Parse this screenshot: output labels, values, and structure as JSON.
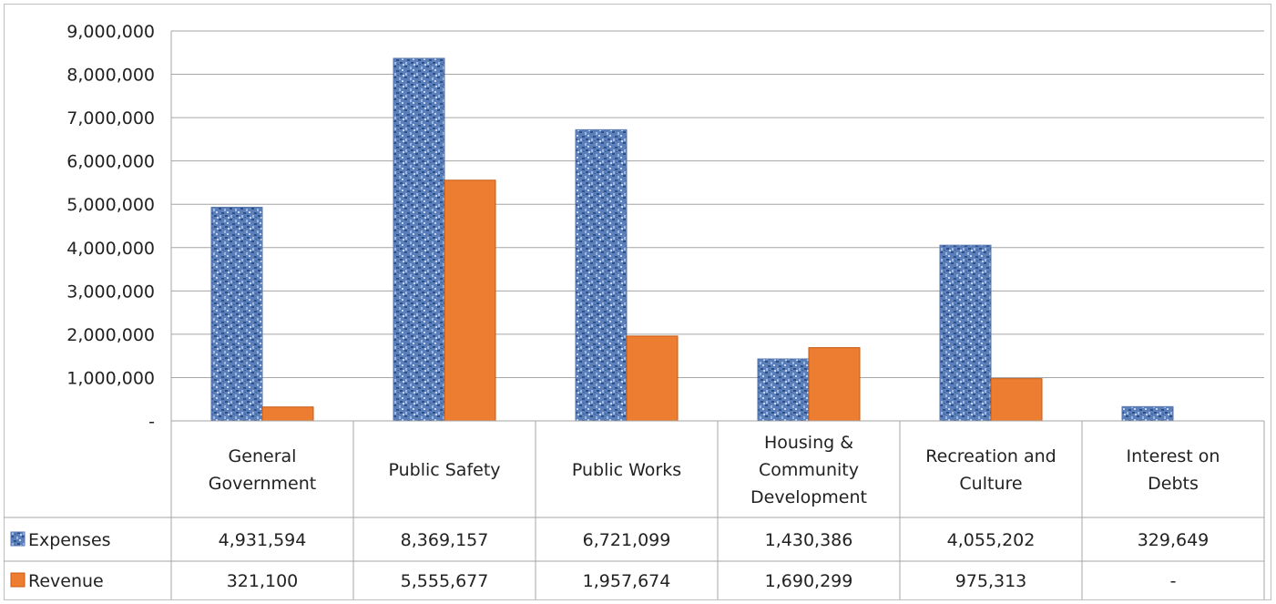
{
  "chart_data": {
    "type": "bar",
    "categories": [
      [
        "General",
        "Government"
      ],
      [
        "Public Safety"
      ],
      [
        "Public Works"
      ],
      [
        "Housing &",
        "Community",
        "Development"
      ],
      [
        "Recreation and",
        "Culture"
      ],
      [
        "Interest on",
        "Debts"
      ]
    ],
    "series": [
      {
        "name": "Expenses",
        "color": "#4a6ea8",
        "pattern": "textured-blue",
        "values": [
          4931594,
          8369157,
          6721099,
          1430386,
          4055202,
          329649
        ],
        "labels": [
          "4,931,594",
          "8,369,157",
          "6,721,099",
          "1,430,386",
          "4,055,202",
          "329,649"
        ]
      },
      {
        "name": "Revenue",
        "color": "#ed7d31",
        "values": [
          321100,
          5555677,
          1957674,
          1690299,
          975313,
          0
        ],
        "labels": [
          "321,100",
          "5,555,677",
          "1,957,674",
          "1,690,299",
          "975,313",
          "-"
        ]
      }
    ],
    "y_ticks": [
      {
        "value": 0,
        "label": "-"
      },
      {
        "value": 1000000,
        "label": "1,000,000"
      },
      {
        "value": 2000000,
        "label": "2,000,000"
      },
      {
        "value": 3000000,
        "label": "3,000,000"
      },
      {
        "value": 4000000,
        "label": "4,000,000"
      },
      {
        "value": 5000000,
        "label": "5,000,000"
      },
      {
        "value": 6000000,
        "label": "6,000,000"
      },
      {
        "value": 7000000,
        "label": "7,000,000"
      },
      {
        "value": 8000000,
        "label": "8,000,000"
      },
      {
        "value": 9000000,
        "label": "9,000,000"
      }
    ],
    "ylim": [
      0,
      9000000
    ],
    "grid": true,
    "legend": "data-table"
  }
}
